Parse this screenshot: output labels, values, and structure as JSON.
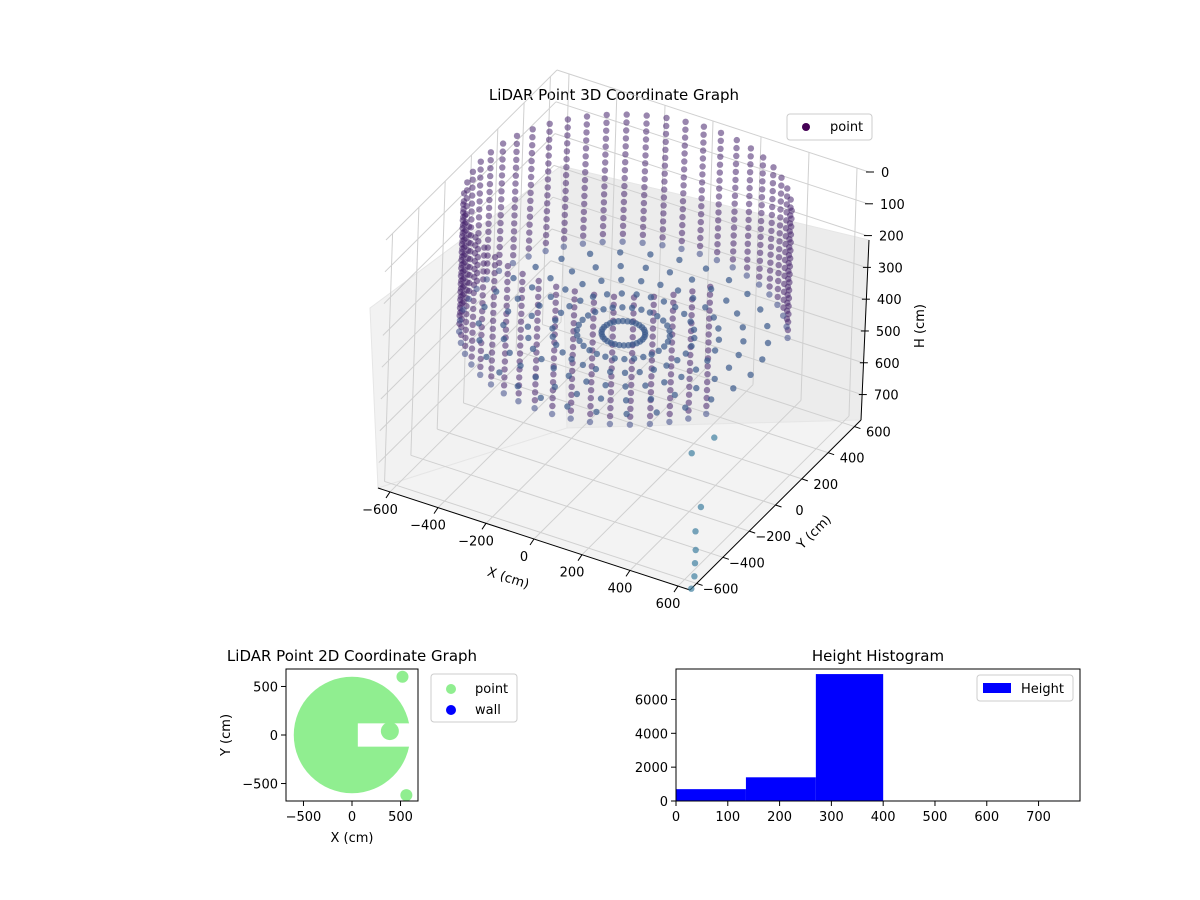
{
  "figure": {
    "background": "#ffffff"
  },
  "chart_data": [
    {
      "type": "scatter3d",
      "title": "LiDAR Point 3D Coordinate Graph",
      "xlabel": "X (cm)",
      "ylabel": "Y (cm)",
      "zlabel": "H (cm)",
      "xlim": [
        -650,
        650
      ],
      "ylim": [
        -650,
        650
      ],
      "zlim": [
        780,
        0
      ],
      "zaxis_inverted": true,
      "x_ticks": [
        -600,
        -400,
        -200,
        0,
        200,
        400,
        600
      ],
      "y_ticks": [
        -600,
        -400,
        -200,
        0,
        200,
        400,
        600
      ],
      "z_ticks": [
        0,
        100,
        200,
        300,
        400,
        500,
        600,
        700
      ],
      "x_tick_labels": [
        "−600",
        "−400",
        "−200",
        "0",
        "200",
        "400",
        "600"
      ],
      "y_tick_labels": [
        "−600",
        "−400",
        "−200",
        "0",
        "200",
        "400",
        "600"
      ],
      "z_tick_labels": [
        "0",
        "100",
        "200",
        "300",
        "400",
        "500",
        "600",
        "700"
      ],
      "legend": {
        "entries": [
          "point"
        ],
        "placement": "upper-right"
      },
      "colormap": "viridis",
      "point_color": "#3b4f8a",
      "marker_color": "#440154",
      "grid": true,
      "structure": {
        "wall_radius": 600,
        "wall_height_range": [
          0,
          400
        ],
        "opening_direction": "+x",
        "floor_height": 400
      },
      "outliers": [
        {
          "x": 500,
          "y": -300,
          "h": 700
        },
        {
          "x": 560,
          "y": -450,
          "h": 700
        },
        {
          "x": 600,
          "y": -520,
          "h": 720
        },
        {
          "x": 620,
          "y": -560,
          "h": 740
        },
        {
          "x": 640,
          "y": -600,
          "h": 760
        },
        {
          "x": 650,
          "y": -640,
          "h": 780
        },
        {
          "x": 350,
          "y": -100,
          "h": 650
        },
        {
          "x": 420,
          "y": -60,
          "h": 600
        }
      ]
    },
    {
      "type": "scatter",
      "title": "LiDAR Point 2D Coordinate Graph",
      "xlabel": "X (cm)",
      "ylabel": "Y (cm)",
      "xlim": [
        -680,
        680
      ],
      "ylim": [
        -680,
        680
      ],
      "x_ticks": [
        -500,
        0,
        500
      ],
      "y_ticks": [
        -500,
        0,
        500
      ],
      "x_tick_labels": [
        "−500",
        "0",
        "500"
      ],
      "y_tick_labels": [
        "−500",
        "0",
        "500"
      ],
      "series": [
        {
          "name": "point",
          "color": "#90ee90",
          "shape": "disk",
          "radius": 600,
          "notch_direction": "+x"
        },
        {
          "name": "wall",
          "color": "#0000ff",
          "points": []
        }
      ],
      "legend": {
        "entries": [
          "point",
          "wall"
        ],
        "placement": "outside-right"
      }
    },
    {
      "type": "bar",
      "title": "Height Histogram",
      "xlabel": "",
      "ylabel": "",
      "bin_edges": [
        0,
        135,
        270,
        400,
        780
      ],
      "values": [
        700,
        1400,
        7500,
        30
      ],
      "xlim": [
        0,
        780
      ],
      "ylim": [
        0,
        7800
      ],
      "x_ticks": [
        0,
        100,
        200,
        300,
        400,
        500,
        600,
        700
      ],
      "y_ticks": [
        0,
        2000,
        4000,
        6000
      ],
      "x_tick_labels": [
        "0",
        "100",
        "200",
        "300",
        "400",
        "500",
        "600",
        "700"
      ],
      "y_tick_labels": [
        "0",
        "2000",
        "4000",
        "6000"
      ],
      "series": [
        {
          "name": "Height",
          "color": "#0000ff"
        }
      ],
      "legend": {
        "entries": [
          "Height"
        ],
        "placement": "upper-right"
      }
    }
  ]
}
